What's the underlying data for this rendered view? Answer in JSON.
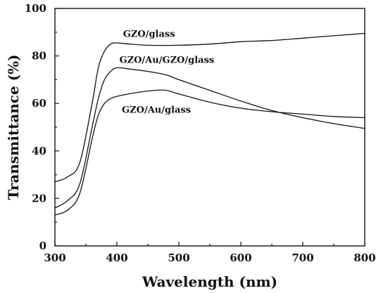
{
  "chart_data": {
    "type": "line",
    "title": "",
    "xlabel": "Wavelength (nm)",
    "ylabel": "Transmittance (%)",
    "xlim": [
      300,
      800
    ],
    "ylim": [
      0,
      100
    ],
    "xticks": [
      300,
      400,
      500,
      600,
      700,
      800
    ],
    "yticks": [
      0,
      20,
      40,
      60,
      80,
      100
    ],
    "grid": false,
    "series": [
      {
        "name": "GZO/glass",
        "x": [
          300,
          320,
          340,
          360,
          370,
          380,
          390,
          400,
          420,
          450,
          500,
          550,
          600,
          650,
          700,
          750,
          800
        ],
        "y": [
          27,
          29,
          35,
          60,
          75,
          82,
          85,
          85.5,
          85,
          84.5,
          84.5,
          85,
          86,
          86.5,
          87.5,
          88.5,
          89.5
        ]
      },
      {
        "name": "GZO/Au/GZO/glass",
        "x": [
          300,
          320,
          340,
          360,
          370,
          380,
          390,
          400,
          420,
          450,
          480,
          500,
          550,
          600,
          650,
          700,
          750,
          800
        ],
        "y": [
          16,
          19,
          26,
          50,
          62,
          70,
          73.5,
          75,
          74.5,
          73.5,
          72,
          70,
          65.5,
          61,
          57,
          54,
          51.5,
          49.5
        ]
      },
      {
        "name": "GZO/Au/glass",
        "x": [
          300,
          320,
          340,
          360,
          370,
          380,
          390,
          400,
          430,
          460,
          480,
          500,
          550,
          600,
          650,
          700,
          750,
          800
        ],
        "y": [
          13,
          15,
          22,
          45,
          55,
          60,
          62,
          63,
          64.5,
          65.5,
          65.5,
          64,
          60.5,
          58,
          56.5,
          55.5,
          54.5,
          54
        ]
      }
    ],
    "annotations": [
      {
        "text": "GZO/glass",
        "x": 410,
        "y": 88
      },
      {
        "text": "GZO/Au/GZO/glass",
        "x": 404,
        "y": 77
      },
      {
        "text": "GZO/Au/glass",
        "x": 408,
        "y": 56
      }
    ]
  }
}
